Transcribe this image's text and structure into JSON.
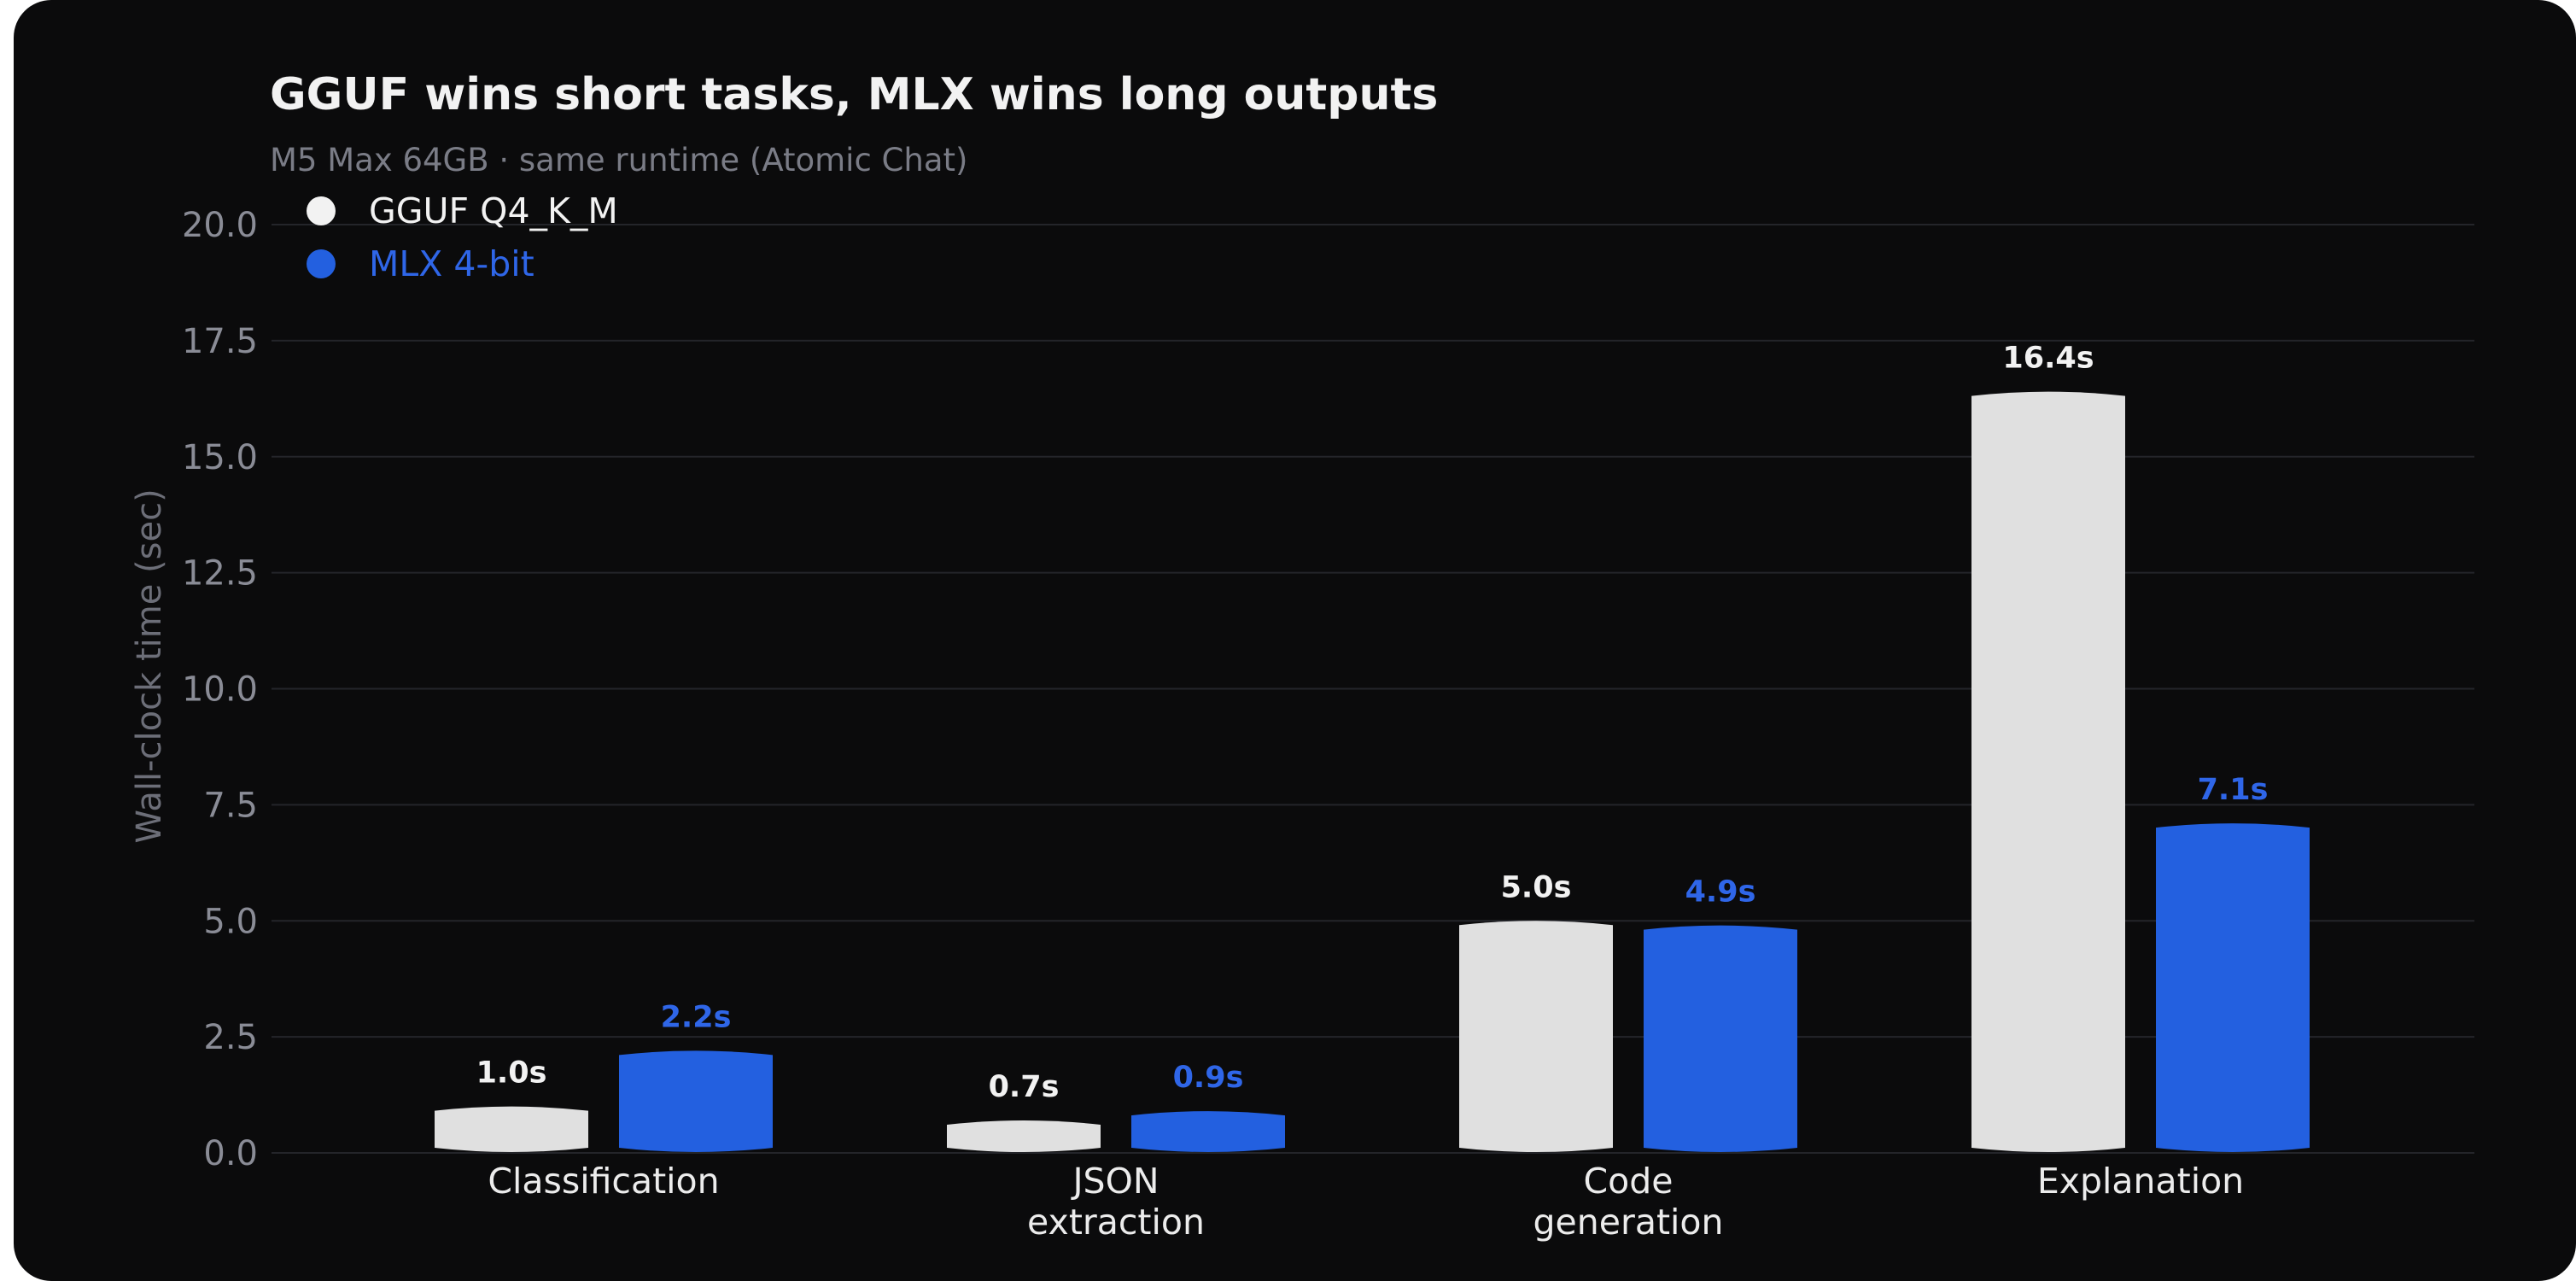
{
  "chart_data": {
    "type": "bar",
    "title": "GGUF wins short tasks, MLX wins long outputs",
    "subtitle": "M5 Max 64GB · same runtime (Atomic Chat)",
    "xlabel": "",
    "ylabel": "Wall-clock time (sec)",
    "ylim": [
      0,
      20
    ],
    "yticks": [
      "0.0",
      "2.5",
      "5.0",
      "7.5",
      "10.0",
      "12.5",
      "15.0",
      "17.5",
      "20.0"
    ],
    "grid": true,
    "legend_position": "top-left",
    "categories": [
      [
        "Classification"
      ],
      [
        "JSON",
        "extraction"
      ],
      [
        "Code",
        "generation"
      ],
      [
        "Explanation"
      ]
    ],
    "series": [
      {
        "name": "GGUF Q4_K_M",
        "color": "#e0e0e0",
        "label_color": "#f2f2f2",
        "values": [
          1.0,
          0.7,
          5.0,
          16.4
        ],
        "labels": [
          "1.0s",
          "0.7s",
          "5.0s",
          "16.4s"
        ]
      },
      {
        "name": "MLX 4-bit",
        "color": "#2360e0",
        "label_color": "#2f66e8",
        "values": [
          2.2,
          0.9,
          4.9,
          7.1
        ],
        "labels": [
          "2.2s",
          "0.9s",
          "4.9s",
          "7.1s"
        ]
      }
    ]
  }
}
